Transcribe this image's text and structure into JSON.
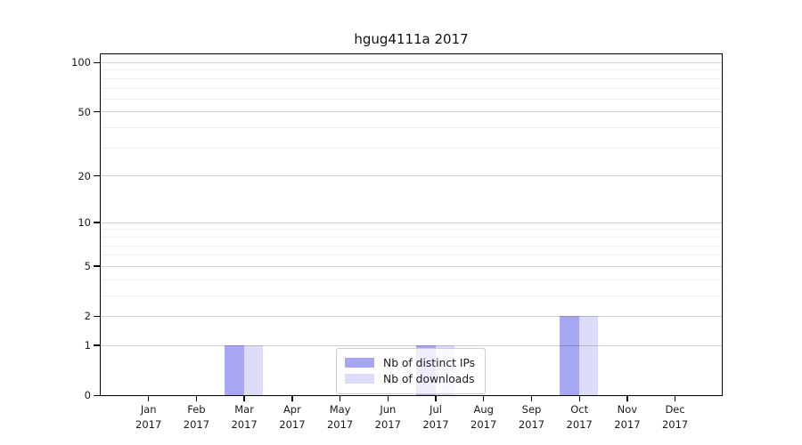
{
  "title": "hgug4111a 2017",
  "legend": {
    "items": [
      {
        "label": "Nb of distinct IPs",
        "color": "#a6a6f2"
      },
      {
        "label": "Nb of downloads",
        "color": "#dcdcf8"
      }
    ]
  },
  "y_axis": {
    "major_ticks": [
      0,
      1,
      2,
      5,
      10,
      20,
      50,
      100
    ],
    "minor_gridlines": [
      3,
      4,
      6,
      7,
      8,
      9,
      30,
      40,
      60,
      70,
      80,
      90
    ],
    "scale": "log10(1+v)"
  },
  "x_axis": {
    "year": "2017",
    "months": [
      "Jan",
      "Feb",
      "Mar",
      "Apr",
      "May",
      "Jun",
      "Jul",
      "Aug",
      "Sep",
      "Oct",
      "Nov",
      "Dec"
    ]
  },
  "chart_data": {
    "type": "bar",
    "title": "hgug4111a 2017",
    "categories": [
      "Jan 2017",
      "Feb 2017",
      "Mar 2017",
      "Apr 2017",
      "May 2017",
      "Jun 2017",
      "Jul 2017",
      "Aug 2017",
      "Sep 2017",
      "Oct 2017",
      "Nov 2017",
      "Dec 2017"
    ],
    "series": [
      {
        "name": "Nb of distinct IPs",
        "color": "#a6a6f2",
        "values": [
          0,
          0,
          1,
          0,
          0,
          0,
          1,
          0,
          0,
          2,
          0,
          0
        ]
      },
      {
        "name": "Nb of downloads",
        "color": "#dcdcf8",
        "values": [
          0,
          0,
          1,
          0,
          0,
          0,
          1,
          0,
          0,
          2,
          0,
          0
        ]
      }
    ],
    "yticks": [
      0,
      1,
      2,
      5,
      10,
      20,
      50,
      100
    ],
    "ylim": [
      0,
      112
    ],
    "yscale": "log10(1+v)",
    "grid": true,
    "legend_position": "inside-bottom-center"
  }
}
